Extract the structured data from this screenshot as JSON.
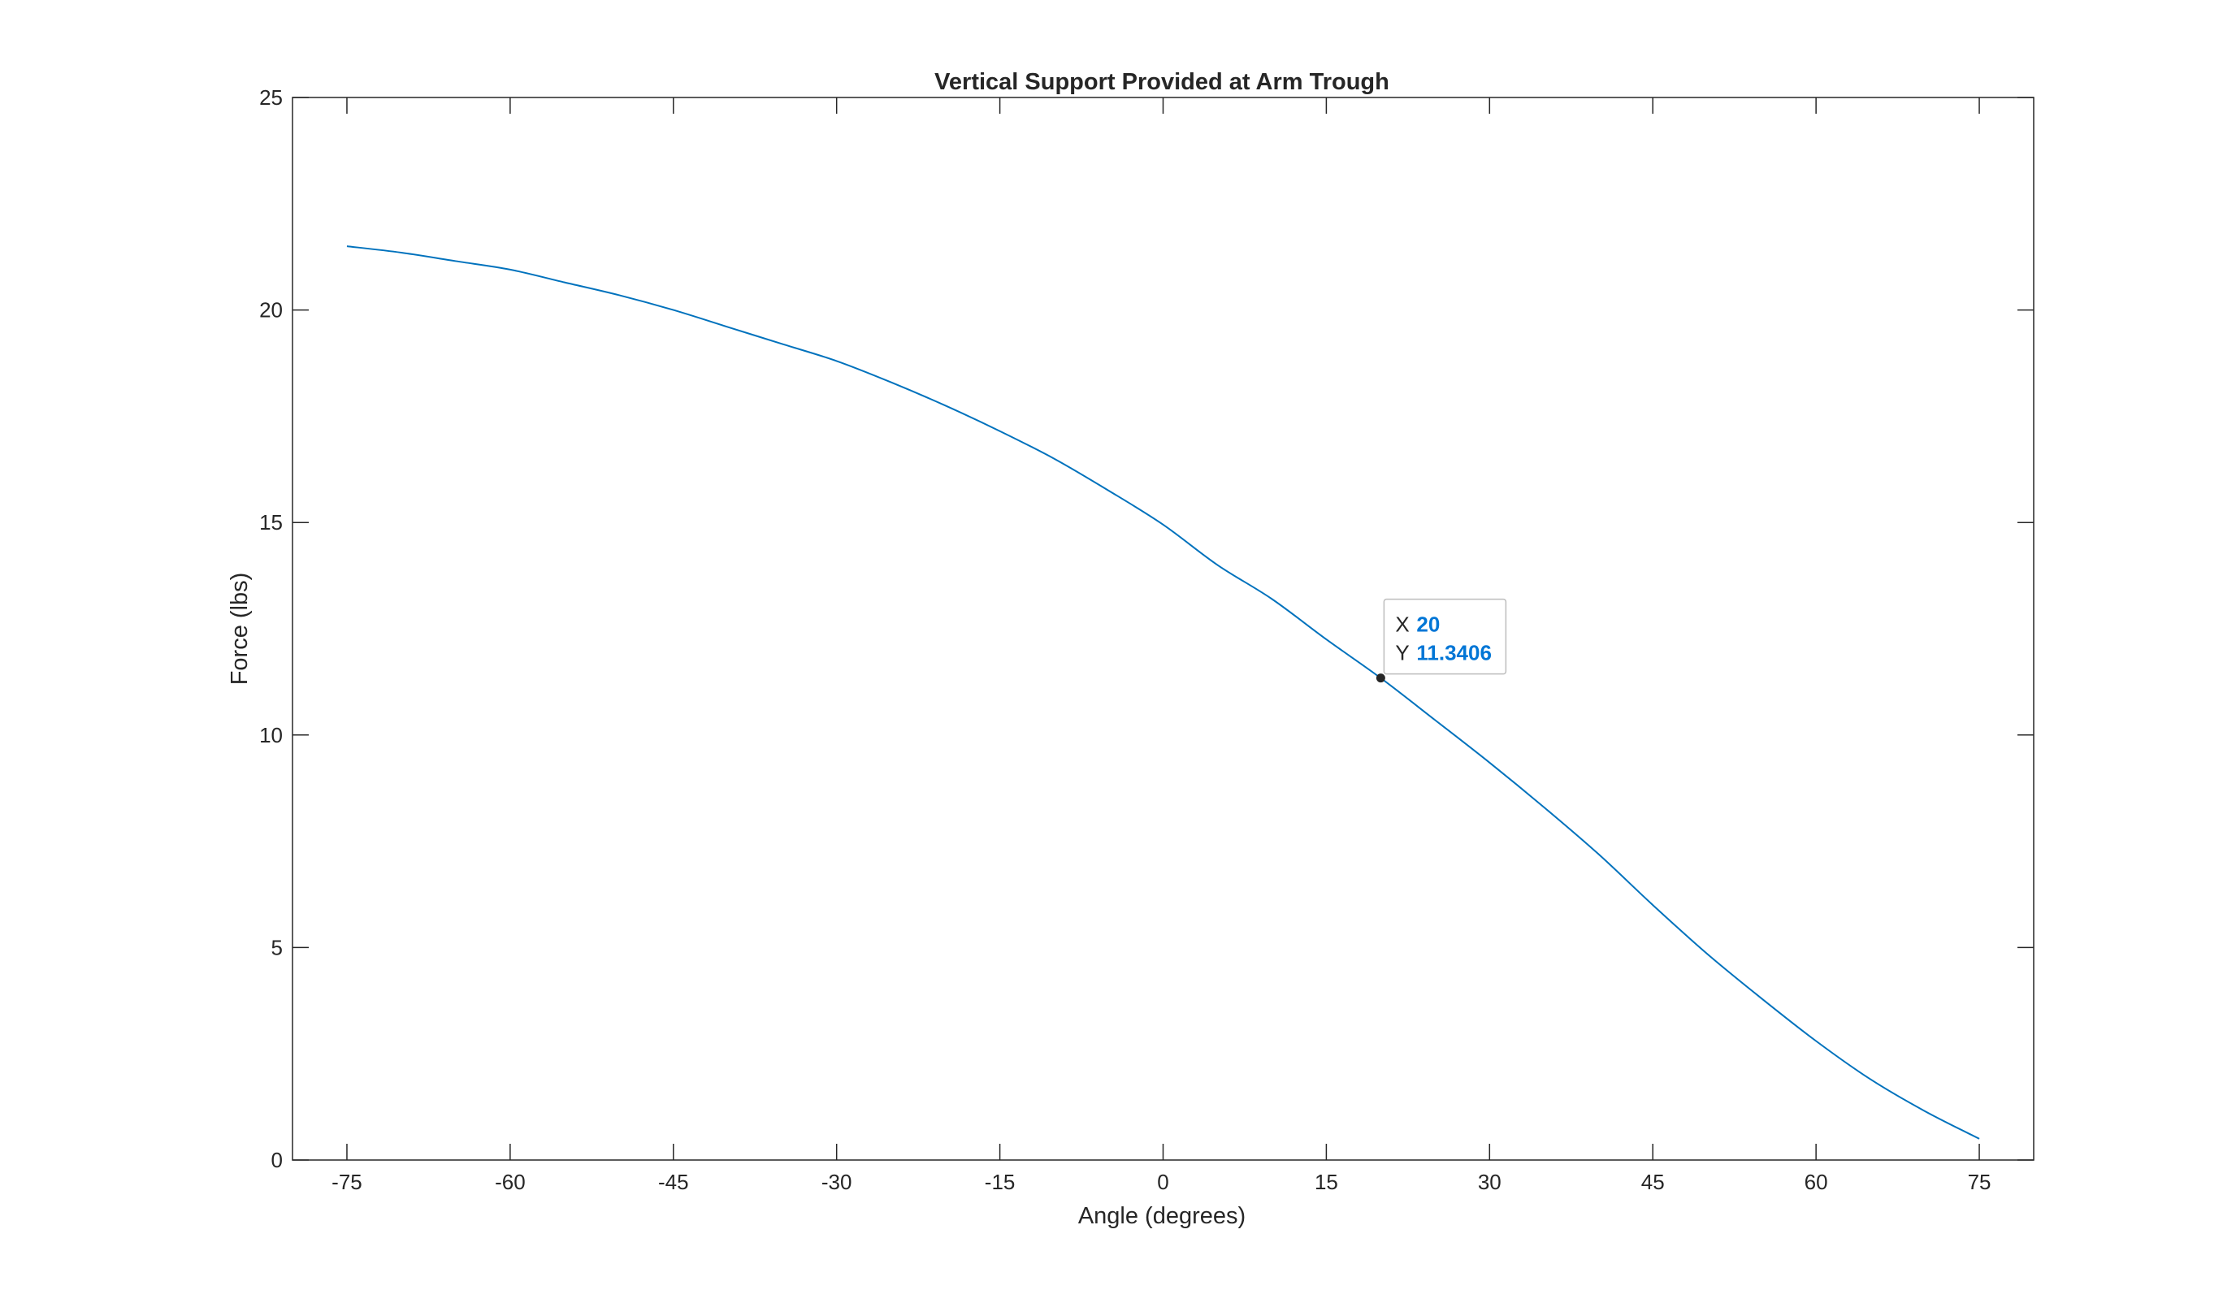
{
  "chart_data": {
    "type": "line",
    "title": "Vertical Support Provided at Arm Trough",
    "xlabel": "Angle (degrees)",
    "ylabel": "Force (lbs)",
    "xlim": [
      -80,
      80
    ],
    "ylim": [
      0,
      25
    ],
    "xticks": [
      -75,
      -60,
      -45,
      -30,
      -15,
      0,
      15,
      30,
      45,
      60,
      75
    ],
    "yticks": [
      0,
      5,
      10,
      15,
      20,
      25
    ],
    "grid": false,
    "box": true,
    "series": [
      {
        "color": "#0072bd",
        "x": [
          -75,
          -70,
          -65,
          -60,
          -55,
          -50,
          -45,
          -40,
          -35,
          -30,
          -25,
          -20,
          -15,
          -10,
          -5,
          0,
          5,
          10,
          15,
          20,
          25,
          30,
          35,
          40,
          45,
          50,
          55,
          60,
          65,
          70,
          75
        ],
        "y": [
          21.5,
          21.35,
          21.15,
          20.95,
          20.65,
          20.35,
          20.0,
          19.6,
          19.2,
          18.8,
          18.3,
          17.75,
          17.15,
          16.5,
          15.75,
          14.95,
          14.0,
          13.2,
          12.25,
          11.34,
          10.35,
          9.35,
          8.3,
          7.2,
          6.0,
          4.85,
          3.8,
          2.8,
          1.9,
          1.15,
          0.5
        ]
      }
    ],
    "datatip": {
      "x_label": "X",
      "x_value": "20",
      "y_label": "Y",
      "y_value": "11.3406",
      "x": 20,
      "y": 11.3406
    }
  }
}
